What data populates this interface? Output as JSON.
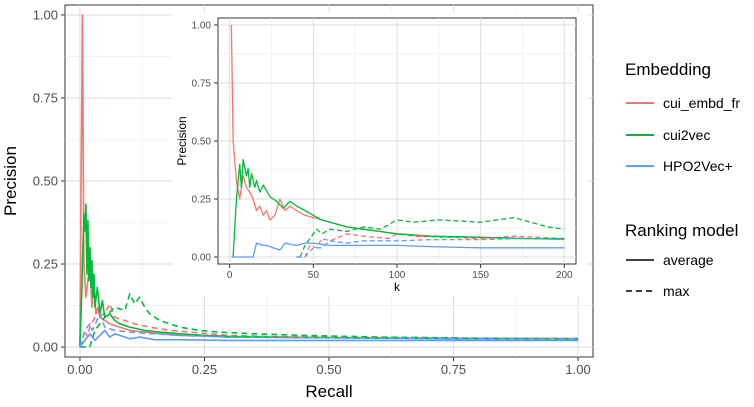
{
  "chart_data": [
    {
      "type": "line",
      "xlabel": "Recall",
      "ylabel": "Precision",
      "xlim": [
        -0.03,
        1.03
      ],
      "ylim": [
        -0.03,
        1.03
      ],
      "xticks": [
        0.0,
        0.25,
        0.5,
        0.75,
        1.0
      ],
      "xtick_labels": [
        "0.00",
        "0.25",
        "0.50",
        "0.75",
        "1.00"
      ],
      "yticks": [
        0.0,
        0.25,
        0.5,
        0.75,
        1.0
      ],
      "ytick_labels": [
        "0.00",
        "0.25",
        "0.50",
        "0.75",
        "1.00"
      ],
      "grid": true,
      "series": [
        {
          "name": "cui_embd_fr",
          "ranking": "average",
          "color": "#F8766D",
          "dash": "solid",
          "x": [
            0.0,
            0.005,
            0.008,
            0.012,
            0.016,
            0.02,
            0.024,
            0.028,
            0.032,
            0.036,
            0.04,
            0.05,
            0.06,
            0.08,
            0.1,
            0.13,
            0.16,
            0.2,
            0.25,
            0.3,
            0.4,
            0.5,
            0.6,
            0.7,
            0.8,
            0.9,
            1.0
          ],
          "y": [
            0.0,
            1.0,
            0.25,
            0.15,
            0.2,
            0.26,
            0.12,
            0.19,
            0.1,
            0.12,
            0.09,
            0.08,
            0.07,
            0.06,
            0.05,
            0.045,
            0.04,
            0.035,
            0.033,
            0.03,
            0.029,
            0.028,
            0.027,
            0.027,
            0.026,
            0.026,
            0.025
          ]
        },
        {
          "name": "cui_embd_fr",
          "ranking": "max",
          "color": "#F8766D",
          "dash": "dashed",
          "x": [
            0.0,
            0.005,
            0.01,
            0.015,
            0.02,
            0.03,
            0.05,
            0.06,
            0.07,
            0.09,
            0.11,
            0.14,
            0.18,
            0.22,
            0.26,
            0.3,
            0.4,
            0.5,
            0.6,
            0.7,
            0.8,
            0.9,
            1.0
          ],
          "y": [
            0.0,
            0.02,
            0.05,
            0.03,
            0.06,
            0.09,
            0.1,
            0.13,
            0.09,
            0.08,
            0.07,
            0.06,
            0.05,
            0.045,
            0.04,
            0.035,
            0.031,
            0.029,
            0.028,
            0.027,
            0.026,
            0.026,
            0.025
          ]
        },
        {
          "name": "cui2vec",
          "ranking": "average",
          "color": "#00BA38",
          "dash": "solid",
          "x": [
            0.0,
            0.004,
            0.006,
            0.008,
            0.01,
            0.012,
            0.014,
            0.016,
            0.018,
            0.02,
            0.022,
            0.024,
            0.026,
            0.028,
            0.03,
            0.035,
            0.04,
            0.045,
            0.05,
            0.06,
            0.07,
            0.08,
            0.1,
            0.13,
            0.16,
            0.2,
            0.25,
            0.3,
            0.4,
            0.5,
            0.6,
            0.7,
            0.8,
            0.9,
            1.0
          ],
          "y": [
            0.0,
            0.18,
            0.3,
            0.4,
            0.35,
            0.43,
            0.22,
            0.38,
            0.2,
            0.3,
            0.18,
            0.26,
            0.15,
            0.22,
            0.12,
            0.18,
            0.1,
            0.14,
            0.09,
            0.1,
            0.08,
            0.07,
            0.06,
            0.05,
            0.045,
            0.04,
            0.035,
            0.032,
            0.03,
            0.028,
            0.027,
            0.026,
            0.025,
            0.025,
            0.024
          ]
        },
        {
          "name": "cui2vec",
          "ranking": "max",
          "color": "#00BA38",
          "dash": "dashed",
          "x": [
            0.0,
            0.02,
            0.03,
            0.05,
            0.07,
            0.09,
            0.1,
            0.11,
            0.12,
            0.13,
            0.14,
            0.16,
            0.2,
            0.24,
            0.28,
            0.35,
            0.45,
            0.6,
            0.8,
            1.0
          ],
          "y": [
            0.0,
            0.0,
            0.05,
            0.09,
            0.12,
            0.11,
            0.16,
            0.13,
            0.15,
            0.12,
            0.1,
            0.08,
            0.06,
            0.05,
            0.045,
            0.04,
            0.035,
            0.03,
            0.027,
            0.025
          ]
        },
        {
          "name": "HPO2Vec+",
          "ranking": "average",
          "color": "#619CFF",
          "dash": "solid",
          "x": [
            0.0,
            0.01,
            0.02,
            0.03,
            0.05,
            0.06,
            0.07,
            0.1,
            0.12,
            0.15,
            0.2,
            0.3,
            0.4,
            0.5,
            0.6,
            0.8,
            1.0
          ],
          "y": [
            0.0,
            0.02,
            0.04,
            0.02,
            0.05,
            0.03,
            0.04,
            0.025,
            0.03,
            0.022,
            0.022,
            0.02,
            0.02,
            0.02,
            0.02,
            0.02,
            0.02
          ]
        },
        {
          "name": "HPO2Vec+",
          "ranking": "max",
          "color": "#619CFF",
          "dash": "dashed",
          "x": [
            0.0,
            0.01,
            0.02,
            0.025,
            0.04,
            0.05,
            0.07,
            0.1,
            0.15,
            0.2,
            0.3,
            0.5,
            0.7,
            1.0
          ],
          "y": [
            0.0,
            0.05,
            0.07,
            0.05,
            0.1,
            0.06,
            0.05,
            0.045,
            0.04,
            0.035,
            0.03,
            0.028,
            0.026,
            0.025
          ]
        }
      ]
    },
    {
      "type": "line",
      "xlabel": "k",
      "ylabel": "Precision",
      "xlim": [
        -7,
        207
      ],
      "ylim": [
        -0.03,
        1.03
      ],
      "xticks": [
        0,
        50,
        100,
        150,
        200
      ],
      "xtick_labels": [
        "0",
        "50",
        "100",
        "150",
        "200"
      ],
      "yticks": [
        0.0,
        0.25,
        0.5,
        0.75,
        1.0
      ],
      "ytick_labels": [
        "0.00",
        "0.25",
        "0.50",
        "0.75",
        "1.00"
      ],
      "grid": true,
      "series": [
        {
          "name": "cui_embd_fr",
          "ranking": "average",
          "color": "#F8766D",
          "dash": "solid",
          "x": [
            1,
            2,
            4,
            6,
            8,
            10,
            12,
            14,
            16,
            18,
            20,
            22,
            24,
            27,
            30,
            33,
            36,
            40,
            45,
            50,
            55,
            60,
            70,
            80,
            100,
            120,
            150,
            175,
            200
          ],
          "y": [
            1.0,
            0.5,
            0.33,
            0.25,
            0.35,
            0.3,
            0.28,
            0.25,
            0.2,
            0.22,
            0.18,
            0.2,
            0.16,
            0.18,
            0.25,
            0.2,
            0.22,
            0.2,
            0.18,
            0.17,
            0.16,
            0.15,
            0.13,
            0.12,
            0.1,
            0.09,
            0.085,
            0.08,
            0.077
          ]
        },
        {
          "name": "cui_embd_fr",
          "ranking": "max",
          "color": "#F8766D",
          "dash": "dashed",
          "x": [
            40,
            45,
            48,
            52,
            55,
            60,
            70,
            80,
            95,
            100,
            110,
            130,
            150,
            170,
            200
          ],
          "y": [
            0.0,
            0.0,
            0.05,
            0.04,
            0.08,
            0.07,
            0.1,
            0.09,
            0.08,
            0.1,
            0.09,
            0.085,
            0.08,
            0.09,
            0.08
          ]
        },
        {
          "name": "cui2vec",
          "ranking": "average",
          "color": "#00BA38",
          "dash": "solid",
          "x": [
            2,
            4,
            6,
            7,
            8,
            10,
            11,
            12,
            13,
            15,
            16,
            18,
            20,
            24,
            28,
            32,
            36,
            40,
            45,
            50,
            55,
            60,
            70,
            80,
            100,
            120,
            150,
            175,
            200
          ],
          "y": [
            0.0,
            0.25,
            0.4,
            0.3,
            0.42,
            0.35,
            0.38,
            0.3,
            0.36,
            0.3,
            0.33,
            0.28,
            0.31,
            0.26,
            0.24,
            0.21,
            0.24,
            0.22,
            0.2,
            0.18,
            0.16,
            0.15,
            0.13,
            0.12,
            0.1,
            0.09,
            0.085,
            0.08,
            0.078
          ]
        },
        {
          "name": "cui2vec",
          "ranking": "max",
          "color": "#00BA38",
          "dash": "dashed",
          "x": [
            42,
            45,
            48,
            52,
            55,
            60,
            70,
            80,
            90,
            100,
            110,
            125,
            150,
            170,
            190,
            200
          ],
          "y": [
            0.0,
            0.05,
            0.08,
            0.12,
            0.1,
            0.12,
            0.11,
            0.13,
            0.12,
            0.16,
            0.15,
            0.16,
            0.15,
            0.17,
            0.13,
            0.12
          ]
        },
        {
          "name": "HPO2Vec+",
          "ranking": "average",
          "color": "#619CFF",
          "dash": "solid",
          "x": [
            1,
            14,
            16,
            20,
            22,
            30,
            33,
            40,
            45,
            50,
            55,
            60,
            70,
            80,
            100,
            120,
            150,
            175,
            200
          ],
          "y": [
            0.0,
            0.0,
            0.06,
            0.05,
            0.05,
            0.03,
            0.06,
            0.05,
            0.06,
            0.06,
            0.055,
            0.05,
            0.05,
            0.05,
            0.05,
            0.045,
            0.04,
            0.04,
            0.04
          ]
        },
        {
          "name": "HPO2Vec+",
          "ranking": "max",
          "color": "#619CFF",
          "dash": "dashed",
          "x": [
            40,
            45,
            50,
            55,
            60,
            70,
            80,
            100,
            120,
            150,
            175,
            200
          ],
          "y": [
            0.0,
            0.0,
            0.04,
            0.04,
            0.07,
            0.06,
            0.07,
            0.07,
            0.075,
            0.075,
            0.08,
            0.075
          ]
        }
      ]
    }
  ],
  "legend": {
    "embedding_title": "Embedding",
    "embedding_items": [
      {
        "label": "cui_embd_fr",
        "color": "#F8766D"
      },
      {
        "label": "cui2vec",
        "color": "#00BA38"
      },
      {
        "label": "HPO2Vec+",
        "color": "#619CFF"
      }
    ],
    "ranking_title": "Ranking model",
    "ranking_items": [
      {
        "label": "average",
        "dash": "solid"
      },
      {
        "label": "max",
        "dash": "dashed"
      }
    ]
  }
}
